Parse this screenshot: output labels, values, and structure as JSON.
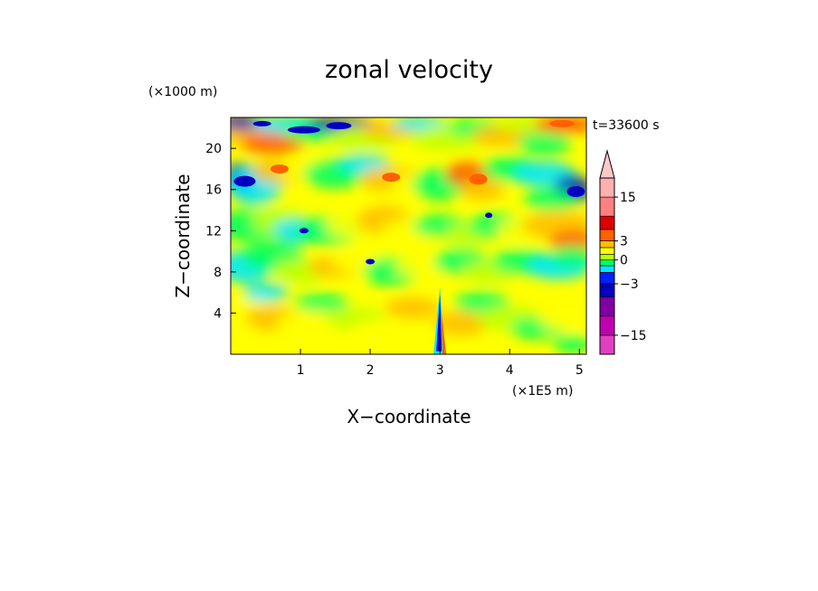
{
  "chart_data": {
    "type": "heatmap",
    "title": "zonal velocity",
    "xlabel": "X−coordinate",
    "ylabel": "Z−coordinate",
    "x_unit": "(×1E5 m)",
    "y_unit": "(×1000 m)",
    "time_label": "t=33600 s",
    "xlim": [
      0,
      5.1
    ],
    "ylim": [
      0,
      23
    ],
    "x_ticks": [
      "1",
      "2",
      "3",
      "4",
      "5"
    ],
    "x_tick_values": [
      1,
      2,
      3,
      4,
      5
    ],
    "y_ticks": [
      "4",
      "8",
      "12",
      "16",
      "20"
    ],
    "y_tick_values": [
      4,
      8,
      12,
      16,
      20
    ],
    "colorbar": {
      "tick_labels": [
        "15",
        "3",
        "0",
        "−3",
        "−15"
      ],
      "tick_values": [
        15,
        3,
        0,
        -3,
        -15
      ],
      "levels": [
        -20,
        -15,
        -10,
        -5,
        -3,
        -2,
        -1,
        0,
        1,
        2,
        3,
        5,
        10,
        15,
        20
      ],
      "colors": [
        "#e040c0",
        "#c000b0",
        "#8000a0",
        "#0000c0",
        "#0020ff",
        "#00e8ff",
        "#00ff60",
        "#c0ff00",
        "#ffff00",
        "#ffc000",
        "#ff6000",
        "#e00000",
        "#ff8080",
        "#ffb0b0"
      ],
      "extend": "max"
    },
    "grid": false
  }
}
